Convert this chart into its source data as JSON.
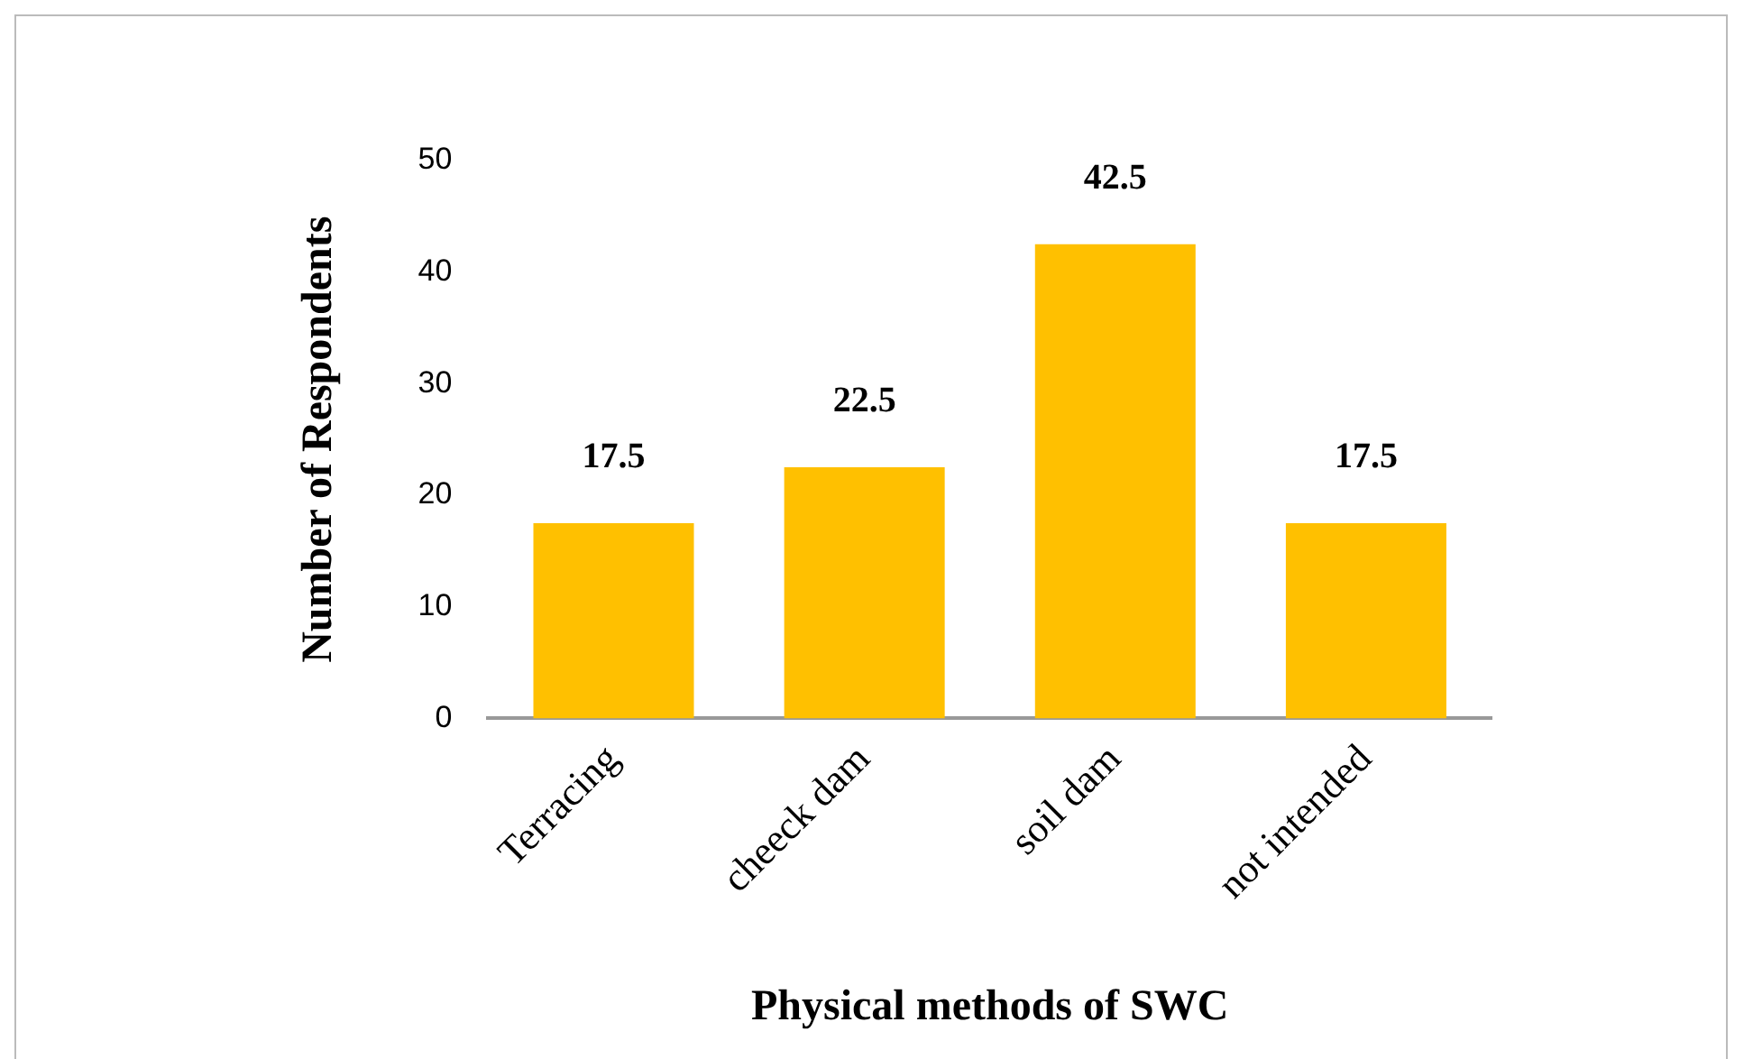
{
  "chart_data": {
    "type": "bar",
    "xlabel": "Physical methods of SWC",
    "ylabel": "Number of Respondents",
    "categories": [
      "Terracing",
      "cheeck dam",
      "soil dam",
      "not intended"
    ],
    "values": [
      17.5,
      22.5,
      42.5,
      17.5
    ],
    "color": "#ffc000",
    "ylim": [
      0,
      50
    ],
    "yticks": [
      0,
      10,
      20,
      30,
      40,
      50
    ],
    "grid": false,
    "data_labels": true
  }
}
